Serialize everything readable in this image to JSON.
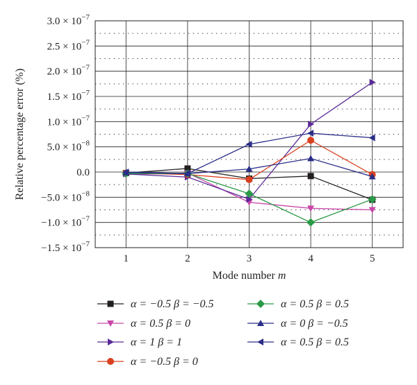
{
  "chart_data": {
    "type": "line",
    "title": "",
    "xlabel": "Mode number",
    "xlabel_var": "m",
    "ylabel": "Relative percentage error (%)",
    "x": [
      1,
      2,
      3,
      4,
      5
    ],
    "xlim": [
      0.5,
      5.5
    ],
    "ylim": [
      -1.5e-07,
      3e-07
    ],
    "x_ticks": [
      "1",
      "2",
      "3",
      "4",
      "5"
    ],
    "y_ticks": [
      {
        "value": 3e-07,
        "mantissa": "3.0 × 10",
        "exp": "−7"
      },
      {
        "value": 2.5e-07,
        "mantissa": "2.5 × 10",
        "exp": "−7"
      },
      {
        "value": 2e-07,
        "mantissa": "2.0 × 10",
        "exp": "−7"
      },
      {
        "value": 1.5e-07,
        "mantissa": "1.5 × 10",
        "exp": "−7"
      },
      {
        "value": 1e-07,
        "mantissa": "1.0 × 10",
        "exp": "−7"
      },
      {
        "value": 5e-08,
        "mantissa": "5.0 × 10",
        "exp": "−8"
      },
      {
        "value": 0.0,
        "mantissa": "0.0",
        "exp": ""
      },
      {
        "value": -5e-08,
        "mantissa": "−5.0 × 10",
        "exp": "−8"
      },
      {
        "value": -1e-07,
        "mantissa": "−1.0 × 10",
        "exp": "−7"
      },
      {
        "value": -1.5e-07,
        "mantissa": "−1.5 × 10",
        "exp": "−7"
      }
    ],
    "grid": true,
    "legend_placement": "bottom",
    "series": [
      {
        "name": "α = −0.5 β = −0.5",
        "color": "#231f20",
        "marker": "square",
        "values": [
          -2e-09,
          7e-09,
          -1.3e-08,
          -8e-09,
          -5.5e-08
        ]
      },
      {
        "name": "α = 0.5 β = 0",
        "color": "#c847a9",
        "marker": "triangle-down",
        "values": [
          -5e-09,
          -2e-09,
          -6e-08,
          -7.2e-08,
          -7.5e-08
        ]
      },
      {
        "name": "α = 1 β = 1",
        "color": "#5a2a98",
        "marker": "triangle-right",
        "values": [
          -4e-09,
          -1e-08,
          -5.4e-08,
          9.5e-08,
          1.78e-07
        ]
      },
      {
        "name": "α = −0.5 β = 0",
        "color": "#d9401f",
        "marker": "circle",
        "values": [
          -2e-09,
          -5e-09,
          -1.5e-08,
          6.3e-08,
          -5e-09
        ]
      },
      {
        "name": "α = 0.5 β = 0.5",
        "color": "#2a9a47",
        "marker": "diamond",
        "values": [
          -3e-09,
          -3e-09,
          -4.3e-08,
          -1e-07,
          -5.4e-08
        ]
      },
      {
        "name": "α = 0 β = −0.5",
        "color": "#2b2e88",
        "marker": "triangle-up",
        "values": [
          -1e-09,
          -3e-09,
          6e-09,
          2.7e-08,
          -9e-09
        ]
      },
      {
        "name": "α = 0.5 β = 0.5",
        "color": "#2b2e88",
        "marker": "triangle-left",
        "values": [
          0,
          -3e-09,
          5.5e-08,
          7.7e-08,
          6.8e-08
        ]
      }
    ]
  }
}
